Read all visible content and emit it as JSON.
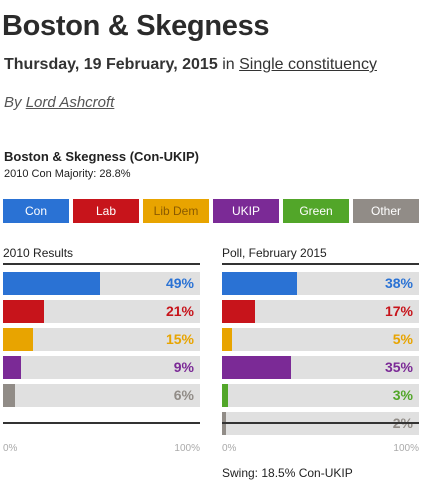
{
  "header": {
    "title": "Boston & Skegness",
    "date": "Thursday, 19 February, 2015",
    "date_connector": "in",
    "category_link": "Single constituency",
    "byline_prefix": "By",
    "author_link": "Lord Ashcroft"
  },
  "chart_heading": {
    "title": "Boston & Skegness (Con-UKIP)",
    "majority": "2010 Con Majority: 28.8%"
  },
  "legend": [
    {
      "label": "Con",
      "color": "#2a72d4",
      "text_color": "#ffffff"
    },
    {
      "label": "Lab",
      "color": "#c7141b",
      "text_color": "#ffffff"
    },
    {
      "label": "Lib Dem",
      "color": "#e8a400",
      "text_color": "#8a5a00"
    },
    {
      "label": "UKIP",
      "color": "#7b2a96",
      "text_color": "#ffffff"
    },
    {
      "label": "Green",
      "color": "#52a629",
      "text_color": "#ffffff"
    },
    {
      "label": "Other",
      "color": "#918c87",
      "text_color": "#ffffff"
    }
  ],
  "chart_data": [
    {
      "type": "bar",
      "title": "2010 Results",
      "categories": [
        "Con",
        "Lab",
        "Lib Dem",
        "UKIP",
        "Other"
      ],
      "values": [
        49,
        21,
        15,
        9,
        6
      ],
      "labels": [
        "49%",
        "21%",
        "15%",
        "9%",
        "6%"
      ],
      "colors": [
        "#2a72d4",
        "#c7141b",
        "#e8a400",
        "#7b2a96",
        "#918c87"
      ],
      "xlim": [
        0,
        100
      ],
      "axis_min_label": "0%",
      "axis_max_label": "100%"
    },
    {
      "type": "bar",
      "title": "Poll, February 2015",
      "categories": [
        "Con",
        "Lab",
        "Lib Dem",
        "UKIP",
        "Green",
        "Other"
      ],
      "values": [
        38,
        17,
        5,
        35,
        3,
        2
      ],
      "labels": [
        "38%",
        "17%",
        "5%",
        "35%",
        "3%",
        "2%"
      ],
      "colors": [
        "#2a72d4",
        "#c7141b",
        "#e8a400",
        "#7b2a96",
        "#52a629",
        "#918c87"
      ],
      "xlim": [
        0,
        100
      ],
      "axis_min_label": "0%",
      "axis_max_label": "100%"
    }
  ],
  "swing": "Swing: 18.5% Con-UKIP"
}
